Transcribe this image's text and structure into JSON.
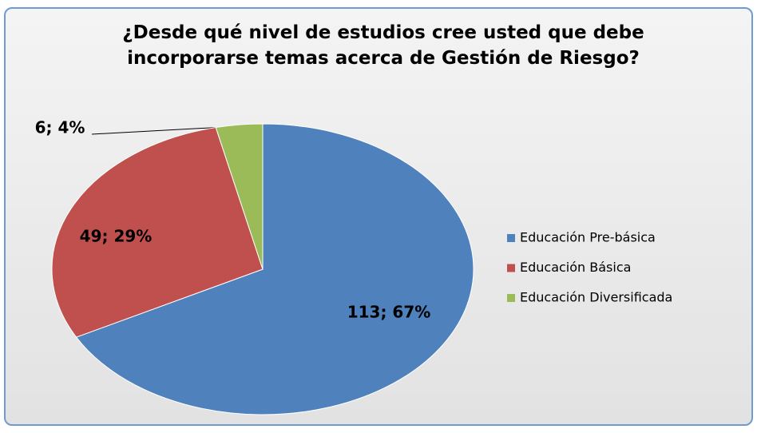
{
  "chart_data": {
    "type": "pie",
    "title": "¿Desde qué nivel de estudios cree usted que debe incorporarse temas acerca de  Gestión de Riesgo?",
    "categories": [
      "Educación Pre-básica",
      "Educación Básica",
      "Educación Diversificada"
    ],
    "values": [
      113,
      49,
      6
    ],
    "value_labels": [
      "113; 67%",
      "49; 29%",
      "6; 4%"
    ],
    "colors": [
      "#4f81bd",
      "#c0504d",
      "#9bbb59"
    ],
    "legend": "right"
  }
}
